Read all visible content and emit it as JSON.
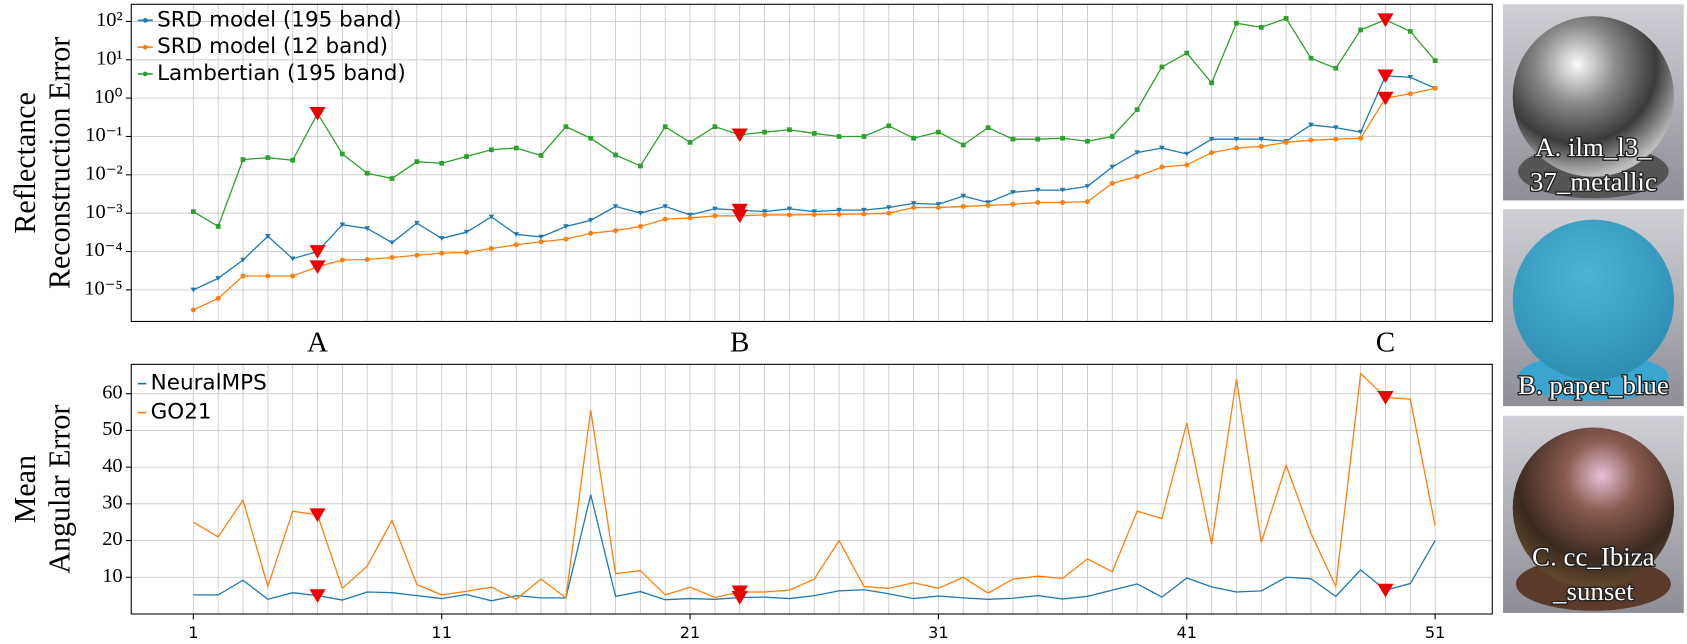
{
  "chart_data": [
    {
      "type": "line",
      "ylabel": [
        "Reflectance",
        "Reconstruction Error"
      ],
      "yscale": "log",
      "grid": true,
      "legend": "upper left",
      "xlim": [
        -1.5,
        53.3
      ],
      "ylim": [
        1.5e-06,
        280
      ],
      "yticks": [
        {
          "value": 1e-05,
          "label": "10⁻⁵"
        },
        {
          "value": 0.0001,
          "label": "10⁻⁴"
        },
        {
          "value": 0.001,
          "label": "10⁻³"
        },
        {
          "value": 0.01,
          "label": "10⁻²"
        },
        {
          "value": 0.1,
          "label": "10⁻¹"
        },
        {
          "value": 1,
          "label": "10⁰"
        },
        {
          "value": 10,
          "label": "10¹"
        },
        {
          "value": 100,
          "label": "10²"
        }
      ],
      "x": [
        1,
        2,
        3,
        4,
        5,
        6,
        7,
        8,
        9,
        10,
        11,
        12,
        13,
        14,
        15,
        16,
        17,
        18,
        19,
        20,
        21,
        22,
        23,
        24,
        25,
        26,
        27,
        28,
        29,
        30,
        31,
        32,
        33,
        34,
        35,
        36,
        37,
        38,
        39,
        40,
        41,
        42,
        43,
        44,
        45,
        46,
        47,
        48,
        49,
        50,
        51
      ],
      "highlights": [
        {
          "x": 6,
          "label": "A"
        },
        {
          "x": 23,
          "label": "B"
        },
        {
          "x": 49,
          "label": "C"
        }
      ],
      "highlight_color": "#ee0000",
      "series": [
        {
          "name": "SRD model (195 band)",
          "color": "#1f77b4",
          "marker": "triangle",
          "values": [
            1e-05,
            2e-05,
            6e-05,
            0.00025,
            6.5e-05,
            0.0001,
            0.0005,
            0.0004,
            0.00017,
            0.00055,
            0.00022,
            0.00032,
            0.0008,
            0.00028,
            0.00024,
            0.00045,
            0.00065,
            0.0015,
            0.001,
            0.0015,
            0.0009,
            0.0013,
            0.0012,
            0.0011,
            0.0013,
            0.0011,
            0.0012,
            0.0012,
            0.0014,
            0.0018,
            0.0017,
            0.0028,
            0.0019,
            0.0035,
            0.004,
            0.004,
            0.005,
            0.016,
            0.038,
            0.05,
            0.035,
            0.085,
            0.085,
            0.085,
            0.075,
            0.2,
            0.17,
            0.13,
            3.8,
            3.5,
            1.8
          ]
        },
        {
          "name": "SRD model (12 band)",
          "color": "#ff7f0e",
          "marker": "circle",
          "values": [
            3e-06,
            6e-06,
            2.3e-05,
            2.3e-05,
            2.3e-05,
            4e-05,
            6e-05,
            6.2e-05,
            7e-05,
            8e-05,
            9e-05,
            9.5e-05,
            0.00012,
            0.00015,
            0.00018,
            0.00021,
            0.0003,
            0.00035,
            0.00045,
            0.0007,
            0.00075,
            0.00085,
            0.00085,
            0.0009,
            0.0009,
            0.00092,
            0.00093,
            0.00095,
            0.001,
            0.0014,
            0.0014,
            0.0015,
            0.0016,
            0.0017,
            0.0019,
            0.0019,
            0.002,
            0.006,
            0.009,
            0.016,
            0.018,
            0.038,
            0.05,
            0.055,
            0.07,
            0.08,
            0.085,
            0.09,
            1,
            1.3,
            1.8
          ]
        },
        {
          "name": "Lambertian (195 band)",
          "color": "#2ca02c",
          "marker": "square",
          "values": [
            0.0011,
            0.00045,
            0.025,
            0.028,
            0.024,
            0.4,
            0.035,
            0.011,
            0.008,
            0.022,
            0.02,
            0.03,
            0.045,
            0.05,
            0.032,
            0.18,
            0.09,
            0.033,
            0.017,
            0.18,
            0.07,
            0.18,
            0.11,
            0.13,
            0.15,
            0.12,
            0.1,
            0.1,
            0.19,
            0.09,
            0.13,
            0.06,
            0.17,
            0.085,
            0.085,
            0.09,
            0.075,
            0.1,
            0.5,
            6.5,
            15,
            2.5,
            90,
            70,
            120,
            11,
            6,
            60,
            110,
            55,
            9.5
          ]
        }
      ]
    },
    {
      "type": "line",
      "ylabel": [
        "Mean",
        "Angular Error"
      ],
      "grid": true,
      "legend": "upper left",
      "xlim": [
        -1.5,
        53.3
      ],
      "ylim": [
        0,
        68
      ],
      "yticks": [
        10,
        20,
        30,
        40,
        50,
        60
      ],
      "xticks": [
        1,
        11,
        21,
        31,
        41,
        51
      ],
      "x": [
        1,
        2,
        3,
        4,
        5,
        6,
        7,
        8,
        9,
        10,
        11,
        12,
        13,
        14,
        15,
        16,
        17,
        18,
        19,
        20,
        21,
        22,
        23,
        24,
        25,
        26,
        27,
        28,
        29,
        30,
        31,
        32,
        33,
        34,
        35,
        36,
        37,
        38,
        39,
        40,
        41,
        42,
        43,
        44,
        45,
        46,
        47,
        48,
        49,
        50,
        51
      ],
      "highlights": [
        {
          "x": 6
        },
        {
          "x": 23
        },
        {
          "x": 49
        }
      ],
      "highlight_color": "#ee0000",
      "series": [
        {
          "name": "NeuralMPS",
          "color": "#1f77b4",
          "values": [
            5.2,
            5.2,
            9.2,
            4,
            5.8,
            5,
            3.8,
            6,
            5.8,
            5,
            4.2,
            5.3,
            3.6,
            5,
            4.4,
            4.4,
            32.5,
            4.8,
            6.1,
            3.9,
            4.2,
            4,
            4.5,
            4.6,
            4.2,
            5,
            6.3,
            6.6,
            5.5,
            4.2,
            4.9,
            4.4,
            4,
            4.3,
            5,
            4.1,
            4.8,
            6.5,
            8.2,
            4.6,
            9.8,
            7.4,
            6,
            6.3,
            10,
            9.6,
            4.8,
            12,
            6.5,
            8.3,
            20
          ]
        },
        {
          "name": "GO21",
          "color": "#ff7f0e",
          "values": [
            25,
            21,
            31,
            7.5,
            28,
            27,
            7,
            13,
            25.5,
            8,
            5.2,
            6.2,
            7.3,
            4,
            9.5,
            4.4,
            55.5,
            11,
            11.8,
            5.2,
            7.3,
            4.5,
            6,
            6,
            6.5,
            9.5,
            20,
            7.5,
            7,
            8.5,
            7,
            10,
            5.7,
            9.5,
            10.3,
            9.7,
            15,
            11.5,
            28,
            26,
            52,
            19,
            64,
            19.5,
            40.5,
            22,
            7.5,
            65.5,
            59,
            58.5,
            24
          ]
        }
      ]
    }
  ],
  "materials": [
    {
      "caption": [
        "A. ilm_l3_",
        "37_metallic"
      ]
    },
    {
      "caption": [
        "B. paper_blue"
      ]
    },
    {
      "caption": [
        "C. cc_Ibiza",
        "_sunset"
      ]
    }
  ]
}
